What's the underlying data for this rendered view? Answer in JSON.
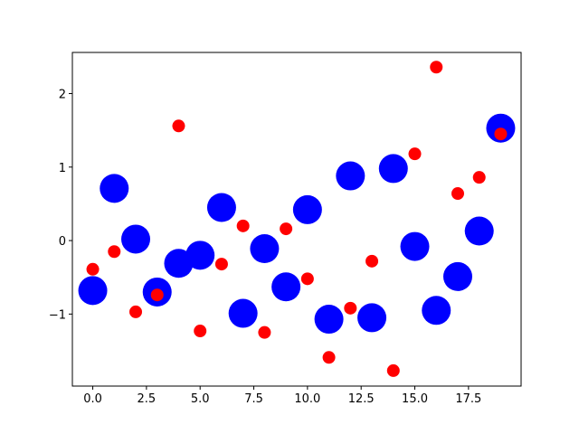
{
  "chart_data": {
    "type": "scatter",
    "x": [
      0,
      1,
      2,
      3,
      4,
      5,
      6,
      7,
      8,
      9,
      10,
      11,
      12,
      13,
      14,
      15,
      16,
      17,
      18,
      19
    ],
    "series": [
      {
        "color": "#0000ff",
        "values": [
          -0.68,
          0.71,
          0.02,
          -0.7,
          -0.31,
          -0.2,
          0.45,
          -0.99,
          -0.11,
          -0.63,
          0.42,
          -1.07,
          0.88,
          -1.05,
          0.98,
          -0.08,
          -0.95,
          -0.49,
          0.13,
          1.53
        ]
      },
      {
        "color": "#ff0000",
        "values": [
          -0.39,
          -0.15,
          -0.97,
          -0.74,
          1.56,
          -1.23,
          -0.32,
          0.2,
          -1.25,
          0.16,
          -0.52,
          -1.59,
          -0.92,
          -0.28,
          -1.77,
          1.18,
          2.36,
          0.64,
          0.86,
          1.45
        ]
      }
    ],
    "xlim": [
      -0.95,
      19.95
    ],
    "xticks": [
      {
        "value": 0,
        "label": "0.0"
      },
      {
        "value": 2.5,
        "label": "2.5"
      },
      {
        "value": 5,
        "label": "5.0"
      },
      {
        "value": 7.5,
        "label": "7.5"
      },
      {
        "value": 10,
        "label": "10.0"
      },
      {
        "value": 12.5,
        "label": "12.5"
      },
      {
        "value": 15,
        "label": "15.0"
      },
      {
        "value": 17.5,
        "label": "17.5"
      }
    ],
    "ylim": [
      -1.98,
      2.56
    ],
    "yticks": [
      {
        "value": -1,
        "label": "−1"
      },
      0,
      1,
      2
    ]
  }
}
